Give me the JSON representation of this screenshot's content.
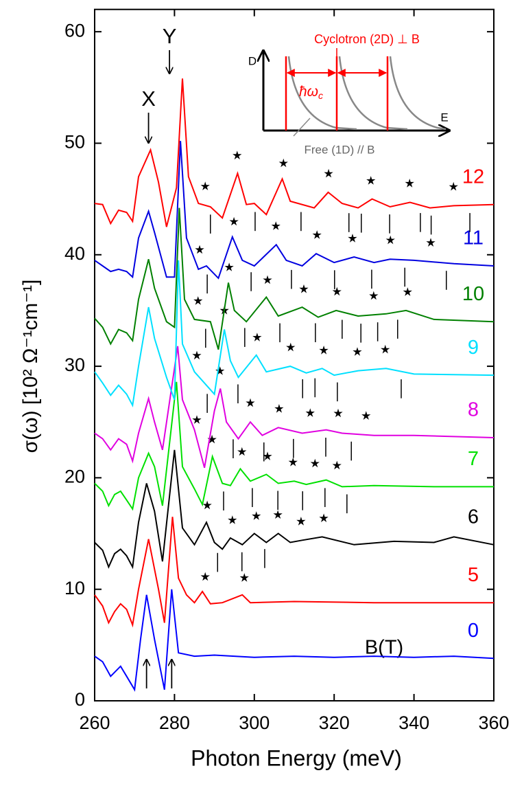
{
  "chart_data": {
    "type": "line",
    "xlabel": "Photon Energy (meV)",
    "ylabel": "σ(ω) [10² Ω⁻¹cm⁻¹]",
    "xlim": [
      260,
      360
    ],
    "ylim": [
      0,
      62
    ],
    "xticks": [
      260,
      280,
      300,
      320,
      340,
      360
    ],
    "yticks": [
      0,
      10,
      20,
      30,
      40,
      50,
      60
    ],
    "legend_title": "B(T)",
    "annotations": {
      "x_peak": "X",
      "y_peak": "Y",
      "x_peak_energy": 273.5,
      "y_peak_energy": 281.5
    },
    "inset": {
      "y_axis": "D",
      "x_axis": "E",
      "cyclotron": "Cyclotron (2D) ⊥ B",
      "spacing": "ħω",
      "spacing_sub": "c",
      "free": "Free (1D) // B"
    },
    "series": [
      {
        "name": "0",
        "color": "#0000ff",
        "x": [
          260,
          262,
          264,
          266.5,
          268,
          270,
          271.5,
          273,
          275,
          277.5,
          279.3,
          281,
          285,
          290,
          300,
          310,
          320,
          330,
          340,
          350,
          360
        ],
        "values": [
          4.0,
          3.5,
          2.2,
          3.1,
          2.2,
          1.0,
          5.5,
          9.5,
          5.5,
          1.0,
          10.0,
          4.3,
          4.0,
          4.1,
          3.9,
          4.0,
          3.9,
          4.0,
          3.9,
          4.0,
          3.8
        ],
        "stars": [],
        "ticks": []
      },
      {
        "name": "5",
        "color": "#ff0000",
        "x": [
          260,
          262,
          263.5,
          265,
          266.5,
          268,
          269.5,
          271,
          273.5,
          276,
          277.5,
          279.5,
          281,
          283,
          285,
          287,
          289,
          292,
          297,
          299,
          310,
          330,
          360
        ],
        "values": [
          9.5,
          8.5,
          7.0,
          8.0,
          8.7,
          8.2,
          6.8,
          10,
          14.5,
          10,
          7.0,
          16.5,
          11,
          9.5,
          8.8,
          9.8,
          8.7,
          8.8,
          9.5,
          8.8,
          8.9,
          8.8,
          8.8
        ],
        "stars": [
          287.7,
          297.5
        ],
        "ticks": []
      },
      {
        "name": "6",
        "color": "#000000",
        "x": [
          260,
          262,
          263.5,
          265,
          266.5,
          268,
          269.5,
          271,
          273,
          275,
          277,
          280,
          282,
          285,
          288,
          290,
          292,
          294,
          297,
          300,
          303,
          306,
          309,
          312,
          317,
          325,
          335,
          345,
          350,
          360
        ],
        "values": [
          14.2,
          13.5,
          12.0,
          13.2,
          13.6,
          13.0,
          12.0,
          16,
          19.5,
          17,
          12.5,
          22.5,
          15.5,
          14.0,
          16.0,
          14.2,
          13.6,
          14.6,
          14.0,
          15.0,
          14.2,
          15.0,
          14.2,
          14.4,
          14.7,
          14.0,
          14.3,
          14.2,
          14.7,
          14.0
        ],
        "stars": [
          288.2,
          294.5,
          300.5,
          305.9,
          311.7,
          317.4
        ],
        "ticks": [
          290.8,
          296.9,
          302.6
        ]
      },
      {
        "name": "7",
        "color": "#00e000",
        "x": [
          260,
          262,
          263.5,
          265,
          266.5,
          268,
          269.5,
          271,
          273.5,
          275,
          277,
          280.5,
          282,
          285,
          287,
          289.5,
          292,
          294,
          296.5,
          299,
          303,
          306,
          310,
          313,
          318,
          322,
          330,
          345,
          360
        ],
        "values": [
          19.5,
          18.8,
          17.5,
          18.5,
          18.8,
          18.0,
          17.2,
          20,
          22.2,
          21,
          17.5,
          28.6,
          21,
          19.0,
          17.6,
          21.9,
          19.5,
          19.3,
          20.8,
          19.7,
          20.3,
          19.5,
          19.7,
          19.4,
          19.8,
          19.2,
          19.3,
          19.2,
          19.2
        ],
        "stars": [
          289.4,
          296.9,
          303.3,
          309.7,
          315.2,
          320.7
        ],
        "ticks": [
          292.3,
          299.5,
          305.9,
          312.1,
          317.7,
          323.2
        ]
      },
      {
        "name": "8",
        "color": "#e000e0",
        "x": [
          260,
          262,
          264,
          266,
          268,
          269.5,
          271,
          273.5,
          275,
          277,
          280.8,
          282,
          285,
          287.5,
          290,
          291.5,
          293,
          296,
          299,
          302,
          306,
          312,
          318,
          322,
          330,
          340,
          360
        ],
        "values": [
          24,
          23.5,
          22.5,
          23.5,
          23,
          21.5,
          24,
          27.1,
          25,
          22.5,
          31.8,
          27,
          24.3,
          20.9,
          26,
          28.0,
          25,
          23.5,
          25.0,
          23.8,
          24.5,
          24,
          24.3,
          24.0,
          23.8,
          23.8,
          23.6
        ],
        "stars": [
          285.6,
          291.4,
          299,
          306.2,
          314,
          321,
          328
        ],
        "ticks": [
          294.7,
          302.4,
          309.8,
          317.9,
          324.3
        ]
      },
      {
        "name": "9",
        "color": "#00e0ff",
        "x": [
          260,
          262,
          264,
          266,
          268,
          269.5,
          271,
          273.5,
          275,
          278,
          280,
          281,
          282,
          285,
          290,
          292.5,
          294,
          296,
          300.5,
          303,
          309,
          313,
          317,
          320,
          326,
          333,
          340,
          360
        ],
        "values": [
          29.5,
          28.5,
          27.4,
          28.3,
          27.5,
          26.5,
          30,
          35.3,
          32.5,
          29,
          27,
          39.5,
          32,
          29.5,
          27.5,
          33.3,
          30.5,
          29.0,
          31.0,
          29.5,
          30.0,
          29.4,
          29.8,
          29.2,
          29.6,
          29.8,
          29.3,
          29.2
        ],
        "stars": [
          285.6,
          292.5,
          300.7,
          309.1,
          317.4,
          325.8,
          332.8
        ],
        "ticks": [
          288.2,
          295.9,
          312.1,
          315.2,
          320.8,
          336.8
        ]
      },
      {
        "name": "10",
        "color": "#008000",
        "x": [
          260,
          262,
          264,
          266,
          268,
          269.5,
          271,
          273.5,
          275,
          278,
          280,
          281.2,
          282.5,
          285,
          289,
          291,
          293.5,
          295,
          298,
          303,
          306,
          312,
          316,
          320.5,
          326,
          333,
          338,
          345,
          360
        ],
        "values": [
          34.3,
          33.5,
          32,
          33.3,
          33.0,
          32.3,
          36,
          39.6,
          37,
          34,
          33.5,
          44.2,
          36,
          34.2,
          34.0,
          31.5,
          37.5,
          35.0,
          34.0,
          36.2,
          34.5,
          35.3,
          34.4,
          35.0,
          34.5,
          34.7,
          35.0,
          34.2,
          34.0
        ],
        "stars": [
          285.9,
          293.7,
          303.3,
          312.4,
          320.7,
          329.9,
          338.4
        ],
        "ticks": [
          287.8,
          297.6,
          306.4,
          315.3,
          322.0,
          326.7,
          330.9,
          335.9
        ]
      },
      {
        "name": "11",
        "color": "#0000e0",
        "x": [
          260,
          262,
          264,
          266,
          268,
          269.5,
          271,
          273.5,
          275,
          278,
          280,
          281.5,
          283,
          286,
          288,
          291,
          294.5,
          297,
          300,
          305.5,
          308,
          312,
          315.5,
          320,
          325,
          330,
          334,
          340,
          350,
          360
        ],
        "values": [
          39.5,
          39.0,
          38.5,
          38.7,
          38.5,
          38.0,
          41.5,
          43.9,
          42,
          38,
          38,
          50.2,
          41.5,
          38.7,
          39.0,
          37.9,
          41.6,
          39.5,
          39.0,
          40.9,
          39.5,
          39.0,
          40.1,
          39.3,
          39.8,
          39.3,
          39.6,
          39.5,
          39.2,
          39.0
        ],
        "stars": [
          286.3,
          294.9,
          305.4,
          315.7,
          324.6,
          334.1,
          344.2
        ],
        "ticks": [
          288.2,
          299.2,
          309.3,
          320.1,
          329.4,
          337.7,
          348.1
        ]
      },
      {
        "name": "12",
        "color": "#ff0000",
        "x": [
          260,
          262,
          264,
          266,
          268,
          269.5,
          271,
          274,
          276,
          278,
          280.5,
          282,
          283.5,
          286,
          289,
          292,
          295.8,
          298,
          300,
          303,
          307,
          309,
          315,
          318.5,
          322,
          326,
          329.5,
          334,
          339,
          344,
          350,
          360
        ],
        "values": [
          44.6,
          44.5,
          42.8,
          44,
          43.8,
          43.0,
          47,
          49.4,
          46.5,
          42.5,
          46,
          55.8,
          47,
          44.6,
          44.3,
          43.3,
          47.3,
          44.5,
          44.6,
          43.6,
          46.8,
          44.8,
          44.2,
          45.6,
          44.6,
          44.2,
          45.0,
          44.3,
          44.7,
          44.2,
          44.4,
          44.5
        ],
        "stars": [
          287.7,
          295.7,
          307.3,
          318.6,
          329.2,
          338.9,
          349.9
        ],
        "ticks": [
          289,
          300.2,
          311.7,
          323.7,
          326.8,
          333.9,
          341.6,
          344.3,
          354
        ]
      }
    ]
  }
}
